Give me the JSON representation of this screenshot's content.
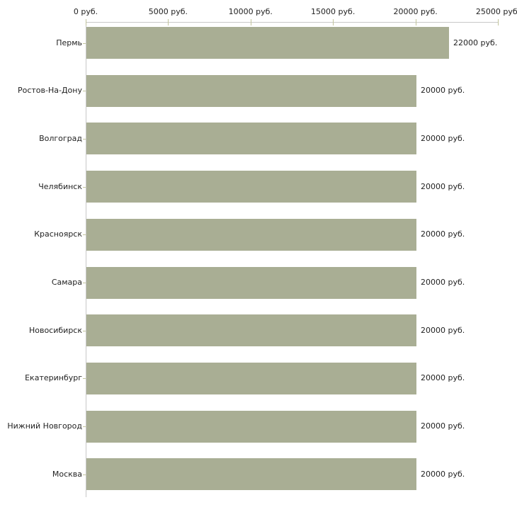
{
  "chart_data": {
    "type": "bar",
    "orientation": "horizontal",
    "title": "",
    "xlabel": "",
    "ylabel": "",
    "unit": "руб.",
    "categories": [
      "Пермь",
      "Ростов-На-Дону",
      "Волгоград",
      "Челябинск",
      "Красноярск",
      "Самара",
      "Новосибирск",
      "Екатеринбург",
      "Нижний Новгород",
      "Москва"
    ],
    "values": [
      22000,
      20000,
      20000,
      20000,
      20000,
      20000,
      20000,
      20000,
      20000,
      20000
    ],
    "value_labels": [
      "22000 руб.",
      "20000 руб.",
      "20000 руб.",
      "20000 руб.",
      "20000 руб.",
      "20000 руб.",
      "20000 руб.",
      "20000 руб.",
      "20000 руб.",
      "20000 руб."
    ],
    "x_ticks": [
      0,
      5000,
      10000,
      15000,
      20000,
      25000
    ],
    "x_tick_labels": [
      "0 руб.",
      "5000 руб.",
      "10000 руб.",
      "15000 руб.",
      "20000 руб.",
      "25000 руб."
    ],
    "xlim": [
      0,
      25000
    ],
    "grid": false,
    "legend": false,
    "colors": {
      "bar": "#a9ae94",
      "axis_line": "#c8c8c8",
      "tick_mark": "#c2c49c",
      "text": "#222222"
    }
  }
}
